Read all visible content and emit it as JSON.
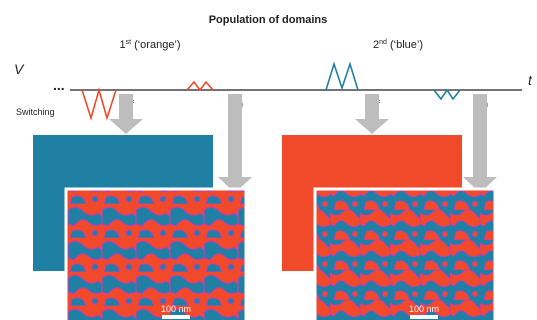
{
  "title": "Population of domains",
  "axis": {
    "y_label": "V",
    "x_label": "t",
    "ellipsis": "..."
  },
  "switching_label": "Switching",
  "panels": [
    {
      "heading_num": "1",
      "heading_sup": "st",
      "heading_rest": " (‘orange’)",
      "pulse_label_1": "off",
      "pulse_label_2": "on",
      "scale_label": "100 nm"
    },
    {
      "heading_num": "2",
      "heading_sup": "nd",
      "heading_rest": " (‘blue’)",
      "pulse_label_1": "off",
      "pulse_label_2": "on",
      "scale_label": "100 nm"
    }
  ],
  "colors": {
    "orange": "#f04a2a",
    "blue": "#1f80a3",
    "arrow": "#bdbdbd",
    "magenta": "#c83ab3"
  }
}
